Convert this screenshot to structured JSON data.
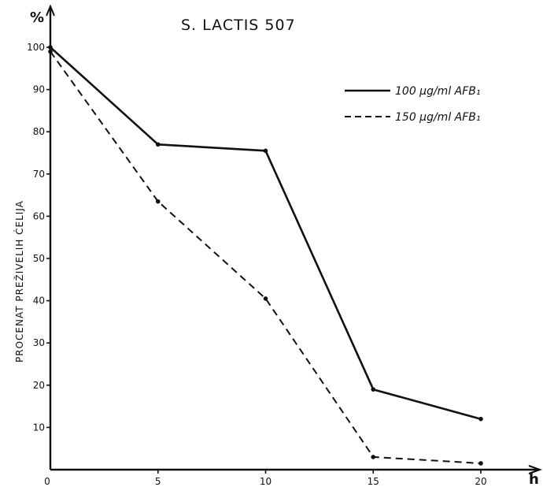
{
  "chart_data": {
    "type": "line",
    "title": "S. LACTIS   507",
    "xlabel": "h",
    "ylabel": "PROCENAT PREŽIVELIH ĆELIJA",
    "y_unit": "%",
    "x": [
      0,
      5,
      10,
      15,
      20
    ],
    "xticks": [
      "0",
      "5",
      "10",
      "15",
      "20"
    ],
    "yticks": [
      "10",
      "20",
      "30",
      "40",
      "50",
      "60",
      "70",
      "80",
      "90",
      "100"
    ],
    "xlim": [
      0,
      22
    ],
    "ylim": [
      0,
      105
    ],
    "grid": false,
    "legend_position": "top-right",
    "series": [
      {
        "name": "100 µg/ml AFB₁",
        "style": "solid",
        "color": "#111111",
        "values": [
          100,
          77,
          75.5,
          19,
          12
        ]
      },
      {
        "name": "150 µg/ml AFB₁",
        "style": "dashed",
        "color": "#111111",
        "values": [
          99,
          63.5,
          40.5,
          3,
          1.5
        ]
      }
    ]
  }
}
